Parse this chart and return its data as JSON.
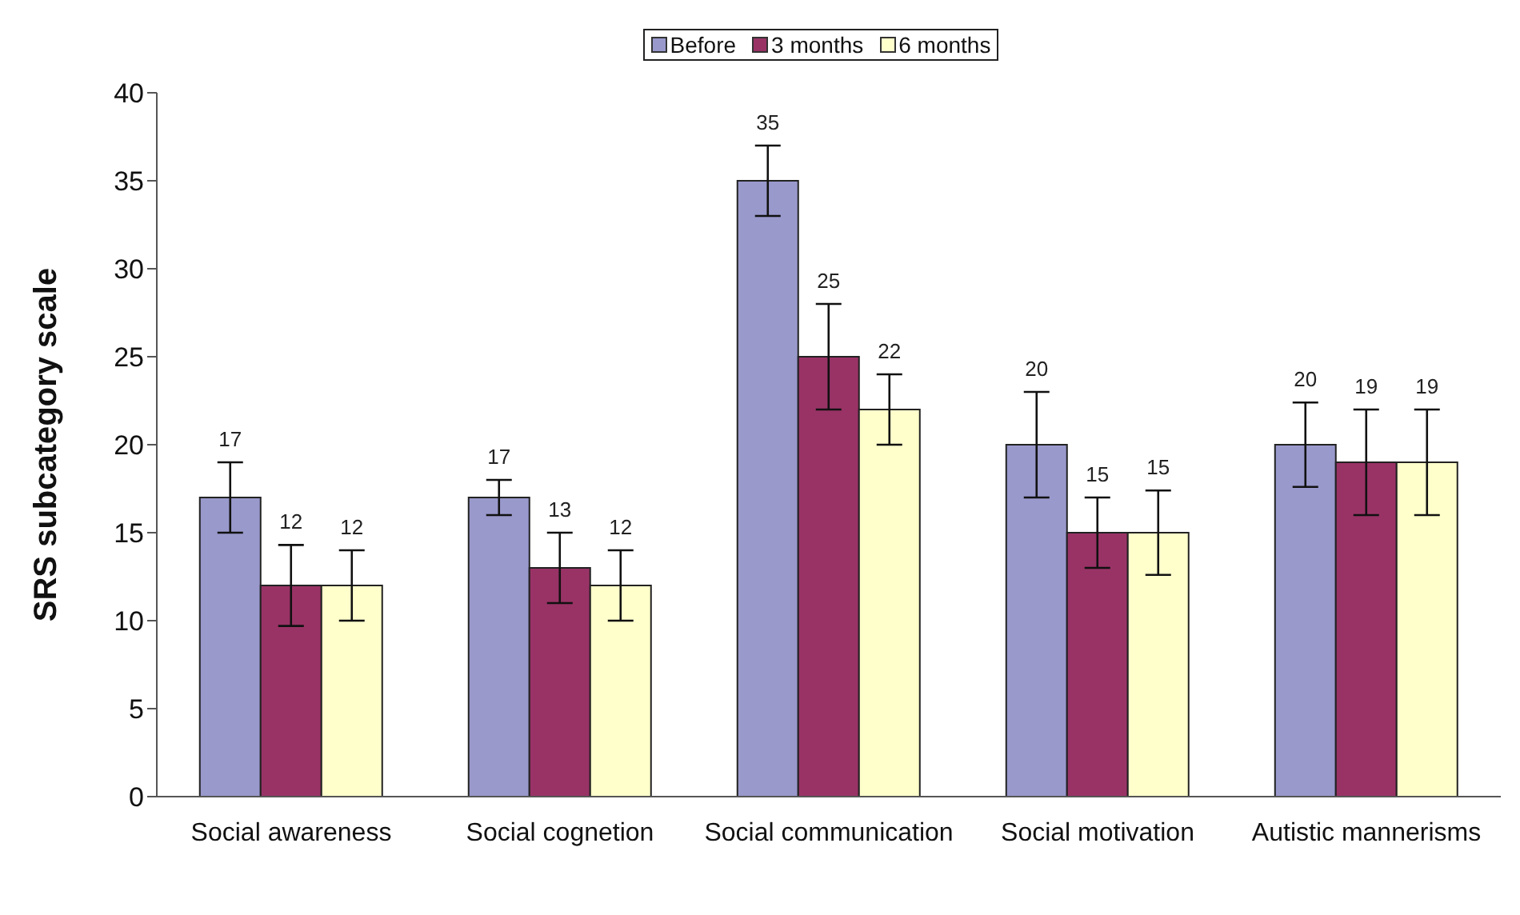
{
  "chart_data": {
    "type": "bar",
    "ylabel": "SRS subcategory scale",
    "categories": [
      "Social awareness",
      "Social cognetion",
      "Social communication",
      "Social motivation",
      "Autistic mannerisms"
    ],
    "series": [
      {
        "name": "Before",
        "color": "#9999cc",
        "values": [
          17,
          17,
          35,
          20,
          20
        ],
        "errors": [
          2,
          1,
          2,
          3,
          2.4
        ]
      },
      {
        "name": "3 months",
        "color": "#993366",
        "values": [
          12,
          13,
          25,
          15,
          19
        ],
        "errors": [
          2.3,
          2,
          3,
          2,
          3
        ]
      },
      {
        "name": "6 months",
        "color": "#ffffcc",
        "values": [
          12,
          12,
          22,
          15,
          19
        ],
        "errors": [
          2,
          2,
          2,
          2.4,
          3
        ]
      }
    ],
    "ylim": [
      0,
      40
    ],
    "yticks": [
      0,
      5,
      10,
      15,
      20,
      25,
      30,
      35,
      40
    ],
    "grid": false,
    "legend": "top",
    "data_labels": true
  }
}
